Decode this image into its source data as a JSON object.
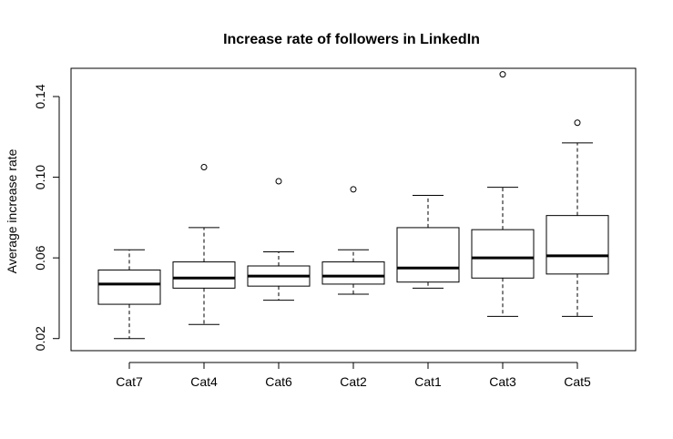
{
  "chart_data": {
    "type": "boxplot",
    "title": "Increase rate of followers in LinkedIn",
    "xlabel": "",
    "ylabel": "Average increase rate",
    "ylim": [
      0.014,
      0.154
    ],
    "yticks": [
      "0.02",
      "0.06",
      "0.10",
      "0.14"
    ],
    "grid": false,
    "categories": [
      "Cat7",
      "Cat4",
      "Cat6",
      "Cat2",
      "Cat1",
      "Cat3",
      "Cat5"
    ],
    "boxes": [
      {
        "whisker_low": 0.02,
        "q1": 0.037,
        "median": 0.047,
        "q3": 0.054,
        "whisker_high": 0.064,
        "outliers": []
      },
      {
        "whisker_low": 0.027,
        "q1": 0.045,
        "median": 0.05,
        "q3": 0.058,
        "whisker_high": 0.075,
        "outliers": [
          0.105
        ]
      },
      {
        "whisker_low": 0.039,
        "q1": 0.046,
        "median": 0.051,
        "q3": 0.056,
        "whisker_high": 0.063,
        "outliers": [
          0.098
        ]
      },
      {
        "whisker_low": 0.042,
        "q1": 0.047,
        "median": 0.051,
        "q3": 0.058,
        "whisker_high": 0.064,
        "outliers": [
          0.094
        ]
      },
      {
        "whisker_low": 0.045,
        "q1": 0.048,
        "median": 0.055,
        "q3": 0.075,
        "whisker_high": 0.091,
        "outliers": []
      },
      {
        "whisker_low": 0.031,
        "q1": 0.05,
        "median": 0.06,
        "q3": 0.074,
        "whisker_high": 0.095,
        "outliers": [
          0.151
        ]
      },
      {
        "whisker_low": 0.031,
        "q1": 0.052,
        "median": 0.061,
        "q3": 0.081,
        "whisker_high": 0.117,
        "outliers": [
          0.127
        ]
      }
    ]
  }
}
